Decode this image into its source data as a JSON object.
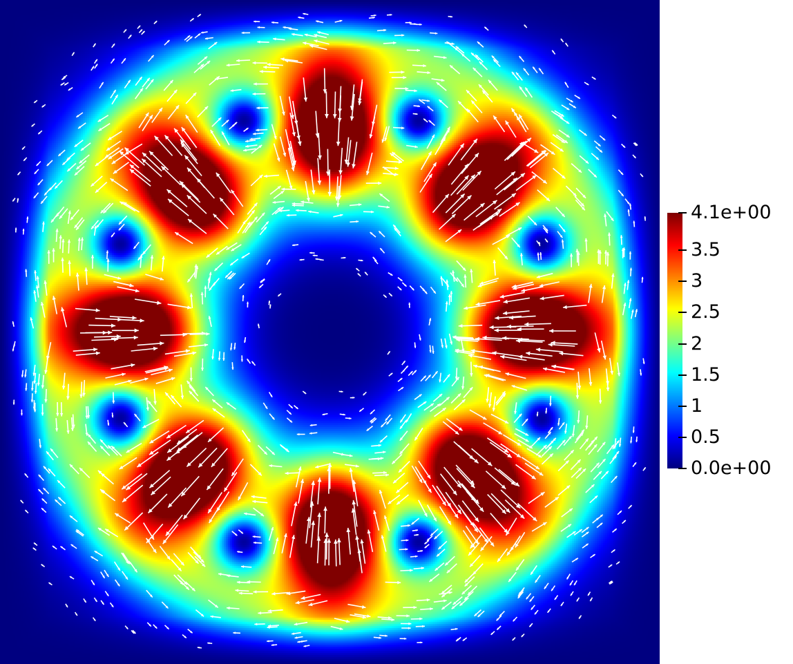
{
  "figure": {
    "field": "velocity magnitude with vector glyphs",
    "colormap": "jet",
    "arrow_color": "#ffffff"
  },
  "colorbar": {
    "ticks": [
      {
        "value": 4.1,
        "label": "4.1e+00"
      },
      {
        "value": 3.5,
        "label": "3.5"
      },
      {
        "value": 3.0,
        "label": "3"
      },
      {
        "value": 2.5,
        "label": "2.5"
      },
      {
        "value": 2.0,
        "label": "2"
      },
      {
        "value": 1.5,
        "label": "1.5"
      },
      {
        "value": 1.0,
        "label": "1"
      },
      {
        "value": 0.5,
        "label": "0.5"
      },
      {
        "value": 0.0,
        "label": "0.0e+00"
      }
    ],
    "min": 0.0,
    "max": 4.1
  },
  "colors": {
    "low": "#00008f",
    "high": "#7f0000"
  }
}
